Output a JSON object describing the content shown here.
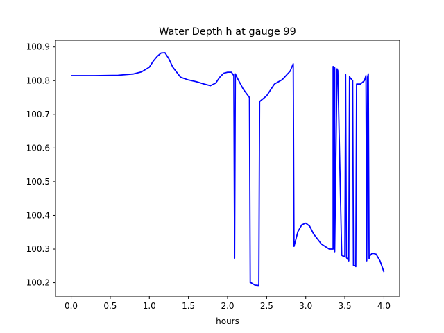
{
  "chart_data": {
    "type": "line",
    "title": "Water Depth h at gauge 99",
    "xlabel": "hours",
    "ylabel": "",
    "xlim": [
      -0.2,
      4.2
    ],
    "ylim": [
      100.16,
      100.92
    ],
    "xticks": [
      0.0,
      0.5,
      1.0,
      1.5,
      2.0,
      2.5,
      3.0,
      3.5,
      4.0
    ],
    "xtick_labels": [
      "0.0",
      "0.5",
      "1.0",
      "1.5",
      "2.0",
      "2.5",
      "3.0",
      "3.5",
      "4.0"
    ],
    "yticks": [
      100.2,
      100.3,
      100.4,
      100.5,
      100.6,
      100.7,
      100.8,
      100.9
    ],
    "ytick_labels": [
      "100.2",
      "100.3",
      "100.4",
      "100.5",
      "100.6",
      "100.7",
      "100.8",
      "100.9"
    ],
    "grid": false,
    "series": [
      {
        "color": "#0000ff",
        "x": [
          0.0,
          0.3,
          0.6,
          0.8,
          0.9,
          1.0,
          1.05,
          1.1,
          1.15,
          1.2,
          1.25,
          1.3,
          1.4,
          1.5,
          1.6,
          1.7,
          1.78,
          1.85,
          1.9,
          1.95,
          2.0,
          2.05,
          2.08,
          2.09,
          2.1,
          2.12,
          2.2,
          2.28,
          2.29,
          2.3,
          2.35,
          2.4,
          2.41,
          2.5,
          2.6,
          2.7,
          2.8,
          2.84,
          2.85,
          2.9,
          2.95,
          3.0,
          3.05,
          3.1,
          3.2,
          3.3,
          3.35,
          3.35,
          3.37,
          3.37,
          3.4,
          3.41,
          3.46,
          3.47,
          3.5,
          3.51,
          3.52,
          3.55,
          3.56,
          3.57,
          3.6,
          3.61,
          3.64,
          3.65,
          3.7,
          3.75,
          3.77,
          3.78,
          3.79,
          3.8,
          3.81,
          3.82,
          3.85,
          3.9,
          3.95,
          4.0
        ],
        "y": [
          100.815,
          100.815,
          100.816,
          100.82,
          100.826,
          100.84,
          100.858,
          100.872,
          100.882,
          100.883,
          100.865,
          100.84,
          100.81,
          100.802,
          100.797,
          100.79,
          100.785,
          100.793,
          100.81,
          100.822,
          100.825,
          100.825,
          100.815,
          100.273,
          100.82,
          100.81,
          100.775,
          100.75,
          100.2,
          100.2,
          100.193,
          100.192,
          100.738,
          100.755,
          100.79,
          100.803,
          100.828,
          100.85,
          100.308,
          100.352,
          100.372,
          100.377,
          100.368,
          100.345,
          100.315,
          100.3,
          100.3,
          100.842,
          100.838,
          100.292,
          100.835,
          100.83,
          100.282,
          100.28,
          100.278,
          100.818,
          100.275,
          100.265,
          100.812,
          100.808,
          100.8,
          100.252,
          100.248,
          100.79,
          100.79,
          100.8,
          100.815,
          100.265,
          100.81,
          100.82,
          100.272,
          100.28,
          100.288,
          100.285,
          100.265,
          100.232
        ]
      }
    ]
  }
}
